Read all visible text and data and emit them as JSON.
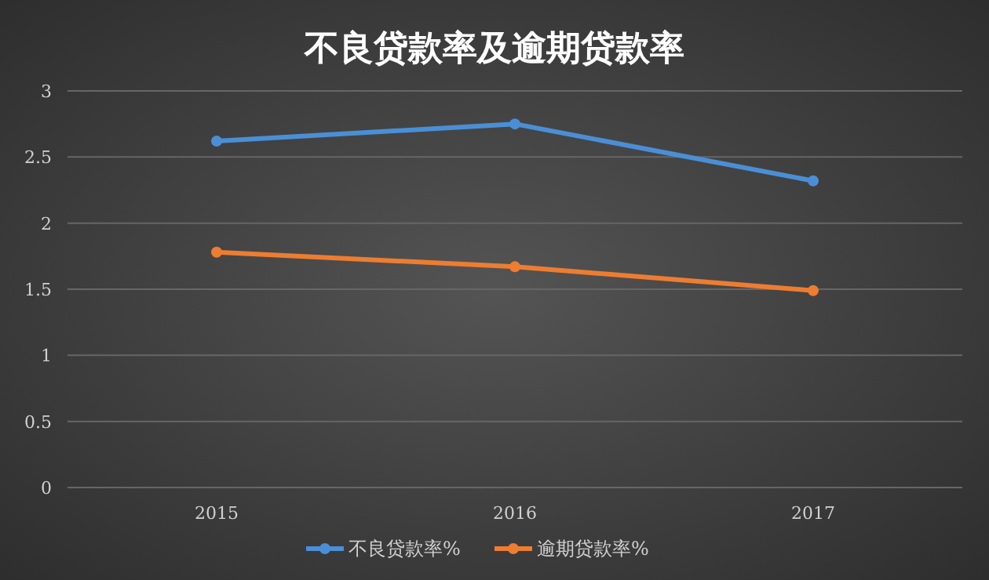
{
  "chart_data": {
    "type": "line",
    "title": "不良贷款率及逾期贷款率",
    "categories": [
      "2015",
      "2016",
      "2017"
    ],
    "series": [
      {
        "name": "不良贷款率%",
        "color": "#4a8fd6",
        "values": [
          2.62,
          2.75,
          2.32
        ]
      },
      {
        "name": "逾期贷款率%",
        "color": "#ed7d31",
        "values": [
          1.78,
          1.67,
          1.49
        ]
      }
    ],
    "ylim": [
      0,
      3
    ],
    "yticks": [
      0,
      0.5,
      1,
      1.5,
      2,
      2.5,
      3
    ],
    "grid": "y",
    "legend": "bottom",
    "marker": "circle",
    "line_style": "solid"
  }
}
